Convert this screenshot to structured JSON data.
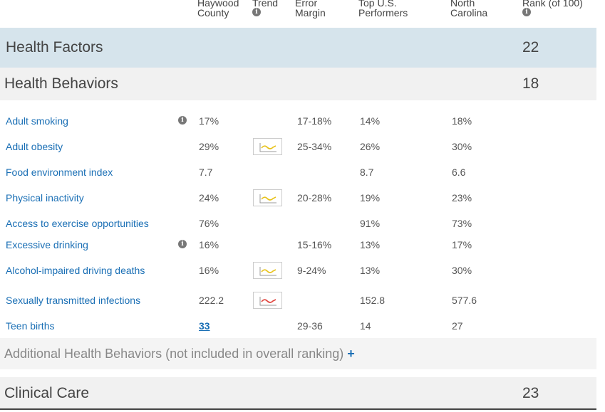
{
  "header": {
    "county_l1": "Haywood",
    "county_l2": "County",
    "trend": "Trend",
    "error_l1": "Error",
    "error_l2": "Margin",
    "top_l1": "Top U.S.",
    "top_l2": "Performers",
    "nc_l1": "North",
    "nc_l2": "Carolina",
    "rank": "Rank (of 100)",
    "info_glyph": "i"
  },
  "factors": {
    "label": "Health Factors",
    "rank": "22"
  },
  "behaviors": {
    "label": "Health Behaviors",
    "rank": "18"
  },
  "rows": [
    {
      "name": "Adult smoking",
      "info": "i",
      "county": "17%",
      "trend": null,
      "error": "17-18%",
      "top": "14%",
      "nc": "18%"
    },
    {
      "name": "Adult obesity",
      "info": null,
      "county": "29%",
      "trend": "worsening-icon",
      "error": "25-34%",
      "top": "26%",
      "nc": "30%"
    },
    {
      "name": "Food environment index",
      "info": null,
      "county": "7.7",
      "trend": null,
      "error": "",
      "top": "8.7",
      "nc": "6.6"
    },
    {
      "name": "Physical inactivity",
      "info": null,
      "county": "24%",
      "trend": "worsening-icon",
      "error": "20-28%",
      "top": "19%",
      "nc": "23%"
    },
    {
      "name": "Access to exercise opportunities",
      "info": null,
      "county": "76%",
      "trend": null,
      "error": "",
      "top": "91%",
      "nc": "73%"
    },
    {
      "name": "Excessive drinking",
      "info": "i",
      "county": "16%",
      "trend": null,
      "error": "15-16%",
      "top": "13%",
      "nc": "17%"
    },
    {
      "name": "Alcohol-impaired driving deaths",
      "info": null,
      "county": "16%",
      "trend": "worsening-icon",
      "error": "9-24%",
      "top": "13%",
      "nc": "30%"
    },
    {
      "name": "Sexually transmitted infections",
      "info": null,
      "county": "222.2",
      "trend": "increasing-icon",
      "error": "",
      "top": "152.8",
      "nc": "577.6"
    },
    {
      "name": "Teen births",
      "info": null,
      "county": "33",
      "county_link": true,
      "trend": null,
      "error": "29-36",
      "top": "14",
      "nc": "27"
    }
  ],
  "additional": {
    "label": "Additional Health Behaviors (not included in overall ranking)",
    "plus": "+"
  },
  "clinical": {
    "label": "Clinical Care",
    "rank": "23"
  },
  "colors": {
    "link": "#1a6fb5",
    "trend_yellow": "#e8c21a",
    "trend_red": "#e0413a",
    "factors_band": "#d6e4ec"
  }
}
